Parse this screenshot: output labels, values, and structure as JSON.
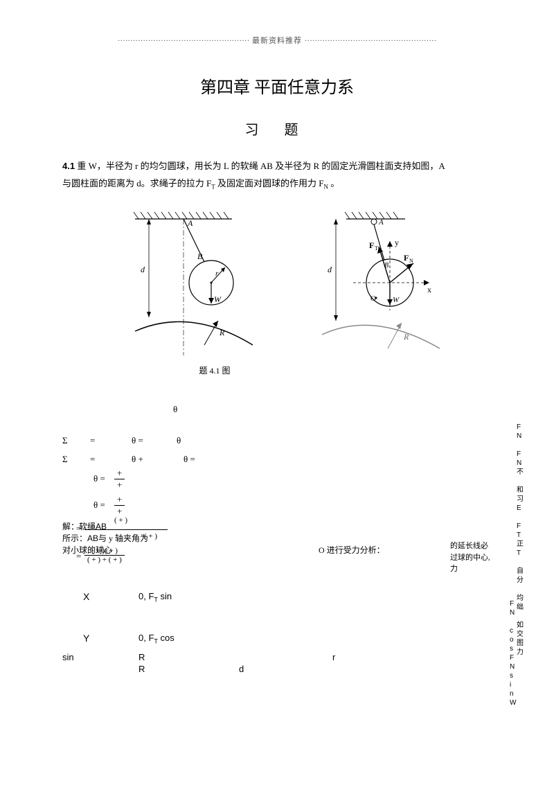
{
  "header": {
    "dots_left": "····················································",
    "center": "最新资料推荐",
    "dots_right": "····················································"
  },
  "title": "第四章 平面任意力系",
  "subtitle": "习  题",
  "problem": {
    "num": "4.1",
    "text1": "重 W，半径为 r 的均匀圆球，用长为 L 的软绳 AB 及半径为 R 的固定光滑圆柱面支持如图，A",
    "text2": "与圆柱面的距离为 d。求绳子的拉力 F",
    "sub1": "T",
    "text3": " 及固定面对圆球的作用力 F",
    "sub2": "N",
    "text4": " 。"
  },
  "figures": {
    "left": {
      "labels": {
        "A": "A",
        "B": "B",
        "r": "r",
        "W": "W",
        "R": "R",
        "d": "d"
      }
    },
    "right": {
      "labels": {
        "A": "A",
        "B": "B",
        "FT": "F",
        "FTsub": "T",
        "FN": "F",
        "FNsub": "N",
        "O": "O",
        "W": "W",
        "R": "R",
        "x": "x",
        "y": "y",
        "d": "d"
      }
    },
    "caption": "题 4.1 图"
  },
  "math": {
    "theta1": "θ",
    "sigma1_lhs": "Σ",
    "sigma1_eq": "=",
    "sigma1_th1": "θ =",
    "sigma1_th2": "θ",
    "sigma2_lhs": "Σ",
    "sigma2_eq": "=",
    "sigma2_th1": "θ +",
    "sigma2_th2": "θ =",
    "frac1_num": "+",
    "frac1_den": "+",
    "frac1_lhs": "θ =",
    "frac2_num": "+",
    "frac2_den": "+",
    "frac2_lhs": "θ =",
    "soln_label": "解：软绳",
    "soln_AB1": "AB",
    "soln_paren1": "(      +     )",
    "soln_line2a": "所示：",
    "soln_AB2": "AB",
    "soln_line2b": "与 y 轴夹角为",
    "soln_paren2": "(      +     )",
    "soln_line3": "对小球的球心",
    "soln_O": "O 进行受力分析：",
    "frac3_num": "(     +     )(     +     )",
    "frac3_den": "(     +     ) + (     +     )",
    "eqX_lhs": "X",
    "eqX_mid": "0, F",
    "eqX_sub": "T",
    "eqX_end": " sin",
    "eqY_lhs": "Y",
    "eqY_mid": "0, F",
    "eqY_sub": "T",
    "eqY_end": " cos",
    "sin_lbl": "sin",
    "R1": "R",
    "r1": "r",
    "R2": "R",
    "d1": "d"
  },
  "side1": [
    "F",
    "N",
    "",
    "F",
    "N",
    "不",
    "",
    "和",
    "习",
    "E",
    "",
    "F",
    "T",
    "正",
    "T",
    "",
    "自",
    "分",
    "",
    "均",
    "绌",
    "",
    "如",
    "交",
    "图",
    "力"
  ],
  "side_note": {
    "line1": "的延长线必",
    "line2": "过球的中心,",
    "line3": "力"
  },
  "side2": [
    "F",
    "N",
    "",
    "c",
    "o",
    "s",
    "F",
    "N",
    "s",
    "i",
    "n",
    "W"
  ],
  "colors": {
    "text": "#000000",
    "bg": "#ffffff",
    "header_text": "#555555",
    "line": "#000000"
  }
}
